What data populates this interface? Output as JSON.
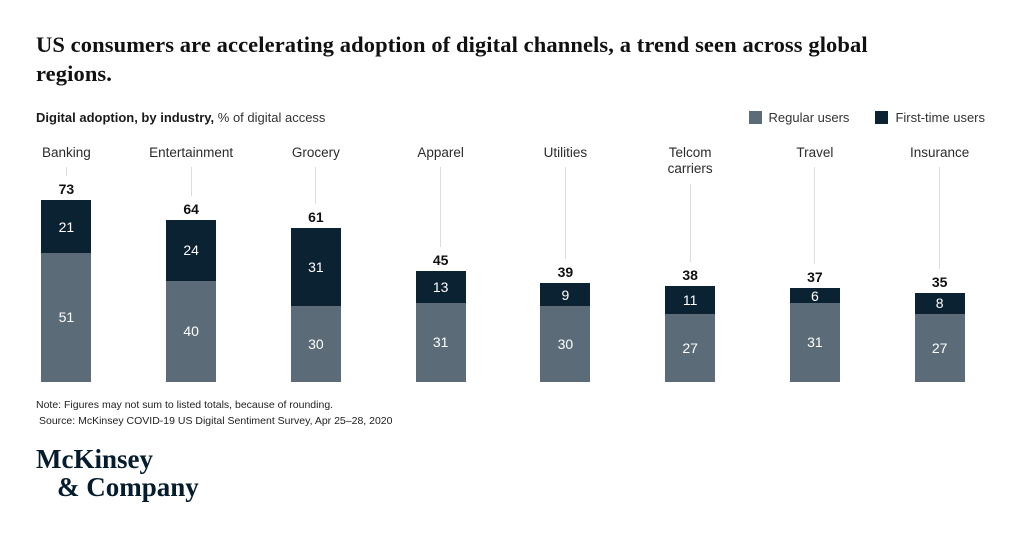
{
  "header": {
    "title": "US consumers are accelerating adoption of digital channels, a trend seen across global regions.",
    "subtitle_bold": "Digital adoption, by industry,",
    "subtitle_rest": " % of digital access"
  },
  "legend": {
    "items": [
      {
        "label": "Regular users",
        "color": "#5b6b77"
      },
      {
        "label": "First-time users",
        "color": "#0b2233"
      }
    ]
  },
  "chart_data": {
    "type": "bar",
    "stacked": true,
    "title": "Digital adoption, by industry, % of digital access",
    "categories": [
      "Banking",
      "Entertainment",
      "Grocery",
      "Apparel",
      "Utilities",
      "Telcom\ncarriers",
      "Travel",
      "Insurance"
    ],
    "series": [
      {
        "name": "Regular users",
        "color": "#5b6b77",
        "values": [
          51,
          40,
          30,
          31,
          30,
          27,
          31,
          27
        ]
      },
      {
        "name": "First-time users",
        "color": "#0b2233",
        "values": [
          21,
          24,
          31,
          13,
          9,
          11,
          6,
          8
        ]
      }
    ],
    "totals": [
      73,
      64,
      61,
      45,
      39,
      38,
      37,
      35
    ],
    "value_unit": "% of digital access",
    "value_axis_visible": false,
    "ylim": [
      0,
      80
    ],
    "grid": false,
    "legend_position": "top-right"
  },
  "footer": {
    "note": "Note: Figures may not sum to listed totals, because of rounding.",
    "source": "Source: McKinsey COVID-19 US Digital Sentiment Survey, Apr 25–28, 2020"
  },
  "logo": {
    "line1": "McKinsey",
    "line2": "& Company"
  }
}
